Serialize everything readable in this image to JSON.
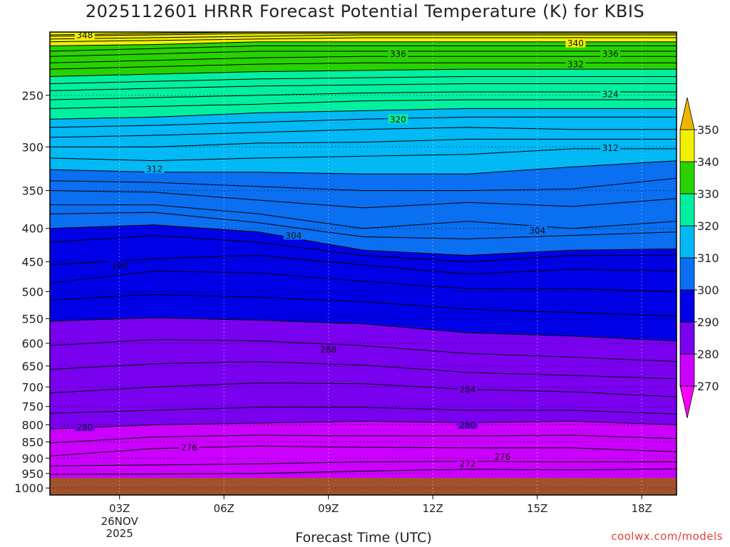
{
  "title": "2025112601 HRRR Forecast Potential Temperature (K) for KBIS",
  "xlabel": "Forecast Time (UTC)",
  "credit": "coolwx.com/models",
  "chart_data": {
    "type": "filled-contour",
    "x_axis": {
      "label": "Forecast Time (UTC)",
      "range_hours": [
        1,
        19
      ],
      "ticks": [
        {
          "hour": 3,
          "label": "03Z",
          "sub": [
            "26NOV",
            "2025"
          ]
        },
        {
          "hour": 6,
          "label": "06Z",
          "sub": []
        },
        {
          "hour": 9,
          "label": "09Z",
          "sub": []
        },
        {
          "hour": 12,
          "label": "12Z",
          "sub": []
        },
        {
          "hour": 15,
          "label": "15Z",
          "sub": []
        },
        {
          "hour": 18,
          "label": "18Z",
          "sub": []
        }
      ]
    },
    "y_axis": {
      "label": "",
      "units": "hPa",
      "scale": "log",
      "range": [
        200,
        1025
      ],
      "ticks": [
        250,
        300,
        350,
        400,
        450,
        500,
        550,
        600,
        650,
        700,
        750,
        800,
        850,
        900,
        950,
        1000
      ]
    },
    "colorbar": {
      "ticks": [
        270,
        280,
        290,
        300,
        310,
        320,
        330,
        340,
        350
      ],
      "extend": "both",
      "bands": [
        {
          "from": 260,
          "to": 270,
          "color": "#ff00ff"
        },
        {
          "from": 270,
          "to": 280,
          "color": "#cc00ff"
        },
        {
          "from": 280,
          "to": 290,
          "color": "#7a00f0"
        },
        {
          "from": 290,
          "to": 300,
          "color": "#0000e6"
        },
        {
          "from": 300,
          "to": 310,
          "color": "#0a6ff0"
        },
        {
          "from": 310,
          "to": 320,
          "color": "#00b9f5"
        },
        {
          "from": 320,
          "to": 330,
          "color": "#00f0a0"
        },
        {
          "from": 330,
          "to": 340,
          "color": "#28d200"
        },
        {
          "from": 340,
          "to": 350,
          "color": "#f0f000"
        },
        {
          "from": 350,
          "to": 360,
          "color": "#f0b400"
        }
      ]
    },
    "ground_color": "#a0522d",
    "surface_pressure_hpa": 965,
    "contour_interval": 2,
    "isentropes": [
      {
        "theta": 272,
        "hours": [
          1,
          4,
          7,
          10,
          13,
          16,
          19
        ],
        "pressure": [
          953,
          952,
          950,
          942,
          936,
          938,
          935
        ]
      },
      {
        "theta": 274,
        "hours": [
          1,
          4,
          7,
          10,
          13,
          16,
          19
        ],
        "pressure": [
          925,
          922,
          918,
          912,
          910,
          912,
          912
        ]
      },
      {
        "theta": 276,
        "hours": [
          1,
          4,
          7,
          10,
          13,
          16,
          19
        ],
        "pressure": [
          893,
          870,
          862,
          866,
          868,
          868,
          880
        ]
      },
      {
        "theta": 278,
        "hours": [
          1,
          4,
          7,
          10,
          13,
          16,
          19
        ],
        "pressure": [
          853,
          835,
          830,
          832,
          832,
          830,
          840
        ]
      },
      {
        "theta": 280,
        "hours": [
          1,
          4,
          7,
          10,
          13,
          16,
          19
        ],
        "pressure": [
          812,
          800,
          795,
          790,
          794,
          790,
          800
        ]
      },
      {
        "theta": 282,
        "hours": [
          1,
          4,
          7,
          10,
          13,
          16,
          19
        ],
        "pressure": [
          768,
          760,
          752,
          752,
          760,
          760,
          770
        ]
      },
      {
        "theta": 284,
        "hours": [
          1,
          4,
          7,
          10,
          13,
          16,
          19
        ],
        "pressure": [
          715,
          700,
          690,
          692,
          706,
          712,
          725
        ]
      },
      {
        "theta": 286,
        "hours": [
          1,
          4,
          7,
          10,
          13,
          16,
          19
        ],
        "pressure": [
          658,
          645,
          640,
          648,
          665,
          672,
          680
        ]
      },
      {
        "theta": 288,
        "hours": [
          1,
          4,
          7,
          10,
          13,
          16,
          19
        ],
        "pressure": [
          605,
          592,
          595,
          605,
          622,
          630,
          640
        ]
      },
      {
        "theta": 290,
        "hours": [
          1,
          4,
          7,
          10,
          13,
          16,
          19
        ],
        "pressure": [
          555,
          548,
          553,
          560,
          578,
          585,
          595
        ]
      },
      {
        "theta": 292,
        "hours": [
          1,
          4,
          7,
          10,
          13,
          16,
          19
        ],
        "pressure": [
          515,
          505,
          510,
          518,
          532,
          538,
          545
        ]
      },
      {
        "theta": 294,
        "hours": [
          1,
          4,
          7,
          10,
          13,
          16,
          19
        ],
        "pressure": [
          485,
          465,
          468,
          482,
          495,
          495,
          500
        ]
      },
      {
        "theta": 296,
        "hours": [
          1,
          4,
          7,
          10,
          13,
          16,
          19
        ],
        "pressure": [
          455,
          445,
          440,
          455,
          470,
          462,
          465
        ]
      },
      {
        "theta": 298,
        "hours": [
          1,
          4,
          7,
          10,
          13,
          16,
          19
        ],
        "pressure": [
          420,
          410,
          420,
          440,
          450,
          440,
          440
        ]
      },
      {
        "theta": 300,
        "hours": [
          1,
          4,
          7,
          10,
          13,
          16,
          19
        ],
        "pressure": [
          400,
          395,
          405,
          432,
          440,
          432,
          430
        ]
      },
      {
        "theta": 302,
        "hours": [
          1,
          4,
          7,
          10,
          13,
          16,
          19
        ],
        "pressure": [
          380,
          378,
          392,
          412,
          415,
          410,
          405
        ]
      },
      {
        "theta": 304,
        "hours": [
          1,
          4,
          7,
          10,
          13,
          16,
          19
        ],
        "pressure": [
          368,
          368,
          380,
          400,
          390,
          400,
          390
        ]
      },
      {
        "theta": 306,
        "hours": [
          1,
          4,
          7,
          10,
          13,
          16,
          19
        ],
        "pressure": [
          350,
          352,
          362,
          372,
          365,
          370,
          360
        ]
      },
      {
        "theta": 308,
        "hours": [
          1,
          4,
          7,
          10,
          13,
          16,
          19
        ],
        "pressure": [
          338,
          340,
          345,
          350,
          350,
          348,
          335
        ]
      },
      {
        "theta": 310,
        "hours": [
          1,
          4,
          7,
          10,
          13,
          16,
          19
        ],
        "pressure": [
          325,
          328,
          328,
          330,
          330,
          322,
          315
        ]
      },
      {
        "theta": 312,
        "hours": [
          1,
          4,
          7,
          10,
          13,
          16,
          19
        ],
        "pressure": [
          312,
          315,
          312,
          310,
          308,
          302,
          302
        ]
      },
      {
        "theta": 314,
        "hours": [
          1,
          4,
          7,
          10,
          13,
          16,
          19
        ],
        "pressure": [
          300,
          300,
          296,
          295,
          292,
          292,
          292
        ]
      },
      {
        "theta": 316,
        "hours": [
          1,
          4,
          7,
          10,
          13,
          16,
          19
        ],
        "pressure": [
          290,
          288,
          285,
          282,
          280,
          282,
          282
        ]
      },
      {
        "theta": 318,
        "hours": [
          1,
          4,
          7,
          10,
          13,
          16,
          19
        ],
        "pressure": [
          280,
          278,
          275,
          272,
          270,
          270,
          270
        ]
      },
      {
        "theta": 320,
        "hours": [
          1,
          4,
          7,
          10,
          13,
          16,
          19
        ],
        "pressure": [
          272,
          270,
          266,
          264,
          262,
          262,
          262
        ]
      },
      {
        "theta": 322,
        "hours": [
          1,
          4,
          7,
          10,
          13,
          16,
          19
        ],
        "pressure": [
          262,
          260,
          258,
          255,
          254,
          254,
          254
        ]
      },
      {
        "theta": 324,
        "hours": [
          1,
          4,
          7,
          10,
          13,
          16,
          19
        ],
        "pressure": [
          254,
          252,
          250,
          248,
          247,
          247,
          247
        ]
      },
      {
        "theta": 326,
        "hours": [
          1,
          4,
          7,
          10,
          13,
          16,
          19
        ],
        "pressure": [
          246,
          244,
          242,
          241,
          240,
          240,
          240
        ]
      },
      {
        "theta": 328,
        "hours": [
          1,
          4,
          7,
          10,
          13,
          16,
          19
        ],
        "pressure": [
          240,
          238,
          236,
          235,
          234,
          234,
          234
        ]
      },
      {
        "theta": 330,
        "hours": [
          1,
          4,
          7,
          10,
          13,
          16,
          19
        ],
        "pressure": [
          234,
          232,
          230,
          229,
          228,
          228,
          228
        ]
      },
      {
        "theta": 332,
        "hours": [
          1,
          4,
          7,
          10,
          13,
          16,
          19
        ],
        "pressure": [
          228,
          226,
          224,
          223,
          223,
          223,
          223
        ]
      },
      {
        "theta": 334,
        "hours": [
          1,
          4,
          7,
          10,
          13,
          16,
          19
        ],
        "pressure": [
          223,
          221,
          219,
          218,
          218,
          218,
          218
        ]
      },
      {
        "theta": 336,
        "hours": [
          1,
          4,
          7,
          10,
          13,
          16,
          19
        ],
        "pressure": [
          218,
          216,
          214,
          214,
          214,
          214,
          214
        ]
      },
      {
        "theta": 338,
        "hours": [
          1,
          4,
          7,
          10,
          13,
          16,
          19
        ],
        "pressure": [
          214,
          212,
          210,
          210,
          210,
          210,
          210
        ]
      },
      {
        "theta": 340,
        "hours": [
          1,
          4,
          7,
          10,
          13,
          16,
          19
        ],
        "pressure": [
          210,
          209,
          207,
          207,
          207,
          207,
          207
        ]
      },
      {
        "theta": 342,
        "hours": [
          1,
          4,
          7,
          10,
          13,
          16,
          19
        ],
        "pressure": [
          207,
          206,
          205,
          204,
          204,
          204,
          204
        ]
      },
      {
        "theta": 344,
        "hours": [
          1,
          4,
          7,
          10,
          13,
          16,
          19
        ],
        "pressure": [
          205,
          204,
          203,
          202,
          202,
          202,
          202
        ]
      },
      {
        "theta": 346,
        "hours": [
          1,
          4,
          7,
          10,
          13,
          16,
          19
        ],
        "pressure": [
          203,
          202,
          201,
          201,
          201,
          201,
          201
        ]
      },
      {
        "theta": 348,
        "hours": [
          1,
          4,
          7,
          10,
          13,
          16,
          19
        ],
        "pressure": [
          202,
          201,
          200,
          200,
          200,
          200,
          200
        ]
      }
    ],
    "contour_labels": [
      {
        "text": "348",
        "hour": 2.0,
        "pressure": 202
      },
      {
        "text": "340",
        "hour": 16.1,
        "pressure": 208
      },
      {
        "text": "336",
        "hour": 11.0,
        "pressure": 216
      },
      {
        "text": "336",
        "hour": 17.1,
        "pressure": 216
      },
      {
        "text": "332",
        "hour": 16.1,
        "pressure": 224
      },
      {
        "text": "324",
        "hour": 17.1,
        "pressure": 249
      },
      {
        "text": "320",
        "hour": 11.0,
        "pressure": 272
      },
      {
        "text": "312",
        "hour": 17.1,
        "pressure": 301
      },
      {
        "text": "312",
        "hour": 4.0,
        "pressure": 324
      },
      {
        "text": "304",
        "hour": 8.0,
        "pressure": 410
      },
      {
        "text": "304",
        "hour": 15.0,
        "pressure": 403
      },
      {
        "text": "296",
        "hour": 3.0,
        "pressure": 456
      },
      {
        "text": "288",
        "hour": 9.0,
        "pressure": 613
      },
      {
        "text": "284",
        "hour": 13.0,
        "pressure": 706
      },
      {
        "text": "280",
        "hour": 2.0,
        "pressure": 806
      },
      {
        "text": "280",
        "hour": 13.0,
        "pressure": 800
      },
      {
        "text": "276",
        "hour": 5.0,
        "pressure": 866
      },
      {
        "text": "276",
        "hour": 14.0,
        "pressure": 895
      },
      {
        "text": "272",
        "hour": 13.0,
        "pressure": 918
      }
    ]
  }
}
